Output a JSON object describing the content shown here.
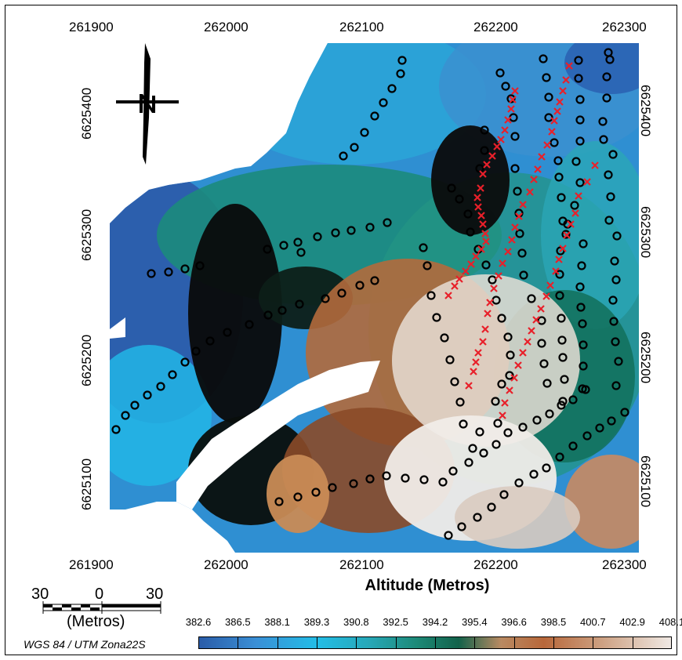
{
  "x_ticks": [
    "261900",
    "262000",
    "262100",
    "262200",
    "262300"
  ],
  "y_ticks": [
    "6625400",
    "6625300",
    "6625200",
    "6625100"
  ],
  "map_title": "Altitude (Metros)",
  "scalebar": {
    "left": "30",
    "mid": "0",
    "right": "30",
    "unit": "(Metros)"
  },
  "crs": "WGS 84 / UTM Zona22S",
  "legend": {
    "values": [
      "382.6",
      "386.5",
      "388.1",
      "389.3",
      "390.8",
      "392.5",
      "394.2",
      "395.4",
      "396.6",
      "398.5",
      "400.7",
      "402.9",
      "408.1"
    ]
  },
  "colors": {
    "low": "#2a5ca8",
    "cyan": "#23bde6",
    "green": "#13624a",
    "dark": "#0a0a0a",
    "brown": "#b8673a",
    "high": "#f0e9e4",
    "circle_marker": "#000000",
    "x_marker": "#e8202a"
  },
  "icons": {
    "north_arrow": "north-arrow-icon"
  }
}
